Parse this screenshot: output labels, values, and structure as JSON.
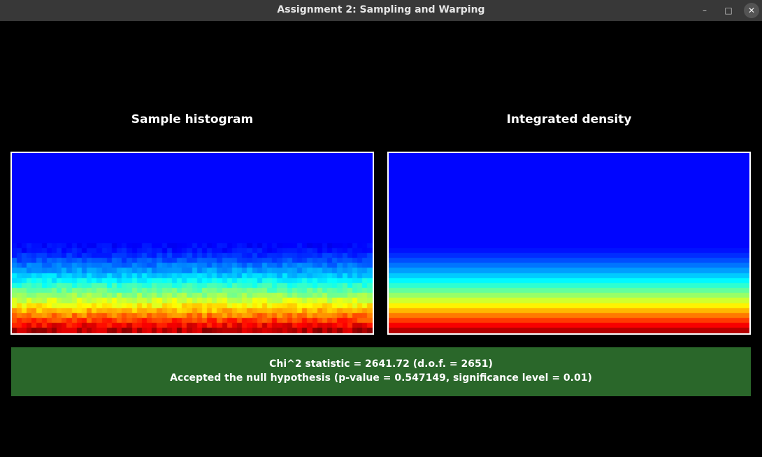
{
  "window": {
    "title": "Assignment 2: Sampling and Warping",
    "minimize_glyph": "–",
    "maximize_glyph": "□",
    "close_glyph": "✕"
  },
  "panels": [
    {
      "title": "Sample histogram",
      "kind": "noisy"
    },
    {
      "title": "Integrated density",
      "kind": "smooth"
    }
  ],
  "status": {
    "line1": "Chi^2 statistic = 2641.72 (d.o.f. = 2651)",
    "line2": "Accepted the null hypothesis (p-value = 0.547149, significance level = 0.01)",
    "background": "#2a672a"
  },
  "colormap": "jet"
}
